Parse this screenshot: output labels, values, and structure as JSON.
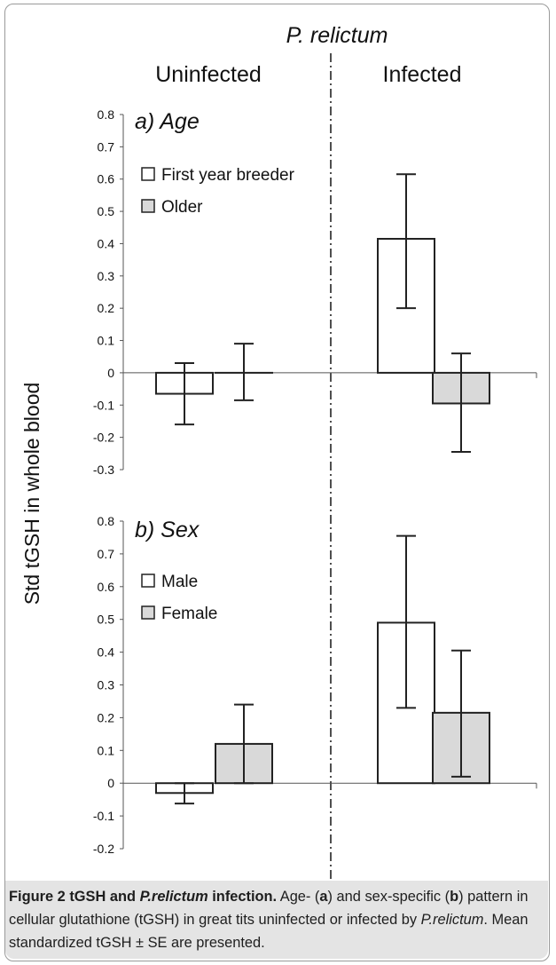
{
  "figure": {
    "title": "P. relictum",
    "group_left": "Uninfected",
    "group_right": "Infected",
    "ylabel": "Std tGSH in whole blood"
  },
  "caption": {
    "fig_label": "Figure 2",
    "bold_title_1": "tGSH and ",
    "bold_title_italic": "P.relictum",
    "bold_title_2": " infection.",
    "text_1": " Age- (",
    "a": "a",
    "text_2": ") and sex-specific (",
    "b": "b",
    "text_3": ") pattern in cellular glutathione (tGSH) in great tits uninfected or infected by ",
    "italic_species": "P.relictum",
    "text_4": ". Mean standardized tGSH ± SE are presented."
  },
  "chart_data": [
    {
      "type": "bar",
      "panel_label": "a) Age",
      "categories": [
        "Uninfected",
        "Infected"
      ],
      "ylim": [
        -0.3,
        0.8
      ],
      "ticks": [
        "0.8",
        "0.7",
        "0.6",
        "0.5",
        "0.4",
        "0.3",
        "0.2",
        "0.1",
        "0",
        "-0.1",
        "-0.2",
        "-0.3"
      ],
      "series": [
        {
          "name": "First year breeder",
          "color": "#ffffff",
          "values": [
            -0.065,
            0.415
          ],
          "se_low": [
            -0.16,
            0.2
          ],
          "se_high": [
            0.03,
            0.615
          ]
        },
        {
          "name": "Older",
          "color": "#d9d9d9",
          "values": [
            0.0,
            -0.095
          ],
          "se_low": [
            -0.085,
            -0.245
          ],
          "se_high": [
            0.09,
            0.06
          ]
        }
      ]
    },
    {
      "type": "bar",
      "panel_label": "b) Sex",
      "categories": [
        "Uninfected",
        "Infected"
      ],
      "ylim": [
        -0.2,
        0.8
      ],
      "ticks": [
        "0.8",
        "0.7",
        "0.6",
        "0.5",
        "0.4",
        "0.3",
        "0.2",
        "0.1",
        "0",
        "-0.1",
        "-0.2"
      ],
      "series": [
        {
          "name": "Male",
          "color": "#ffffff",
          "values": [
            -0.03,
            0.49
          ],
          "se_low": [
            -0.062,
            0.23
          ],
          "se_high": [
            0.0,
            0.755
          ]
        },
        {
          "name": "Female",
          "color": "#d9d9d9",
          "values": [
            0.12,
            0.215
          ],
          "se_low": [
            0.0,
            0.02
          ],
          "se_high": [
            0.24,
            0.405
          ]
        }
      ]
    }
  ]
}
